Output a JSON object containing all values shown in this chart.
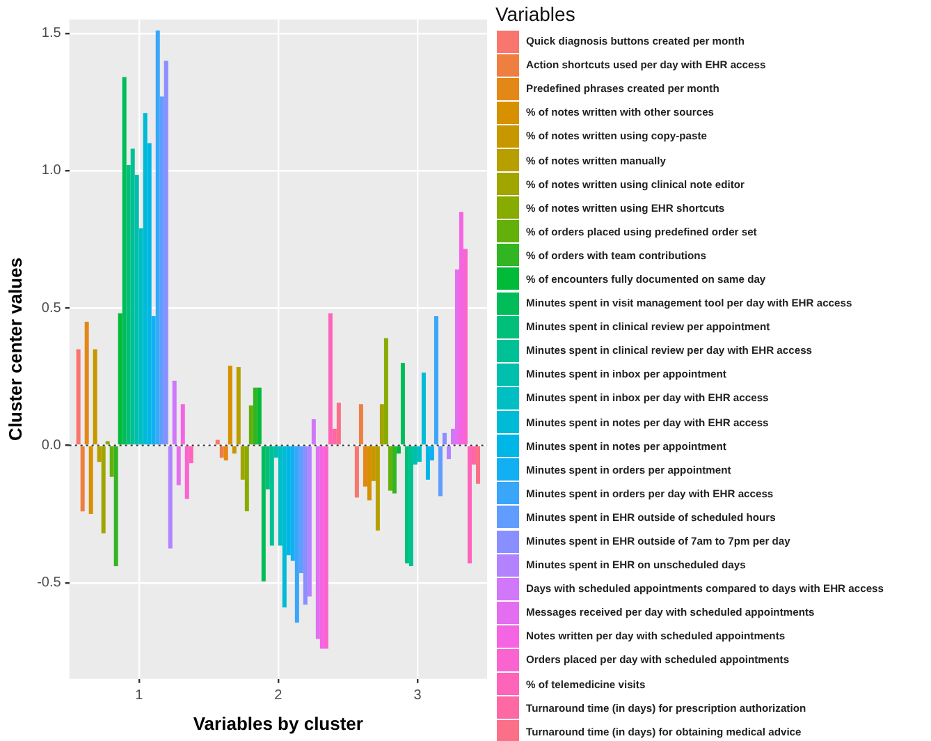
{
  "chart_data": {
    "type": "bar",
    "xlabel": "Variables by cluster",
    "ylabel": "Cluster center values",
    "legend_title": "Variables",
    "legend": "right",
    "grid": true,
    "categories": [
      "1",
      "2",
      "3"
    ],
    "ylim": [
      -0.85,
      1.55
    ],
    "yticks": [
      {
        "value": -0.5,
        "label": "-0.5"
      },
      {
        "value": 0,
        "label": "0.0"
      },
      {
        "value": 0.5,
        "label": "0.5"
      },
      {
        "value": 1,
        "label": "1.0"
      },
      {
        "value": 1.5,
        "label": "1.5"
      }
    ],
    "ref_lines": [
      {
        "axis": "y",
        "value": 0,
        "line_style": "dotted",
        "color": "#333333"
      }
    ],
    "series": [
      {
        "name": "Quick diagnosis buttons created per month",
        "color": "#F8766D",
        "values": [
          0.35,
          0.02,
          -0.19
        ]
      },
      {
        "name": "Action shortcuts used per day with EHR access",
        "color": "#EE7F41",
        "values": [
          -0.24,
          -0.045,
          0.15
        ]
      },
      {
        "name": "Predefined phrases created per month",
        "color": "#E38816",
        "values": [
          0.45,
          -0.055,
          -0.15
        ]
      },
      {
        "name": "% of notes written with other sources",
        "color": "#D69000",
        "values": [
          -0.25,
          0.29,
          -0.2
        ]
      },
      {
        "name": "% of notes written using copy-paste",
        "color": "#C79700",
        "values": [
          0.35,
          -0.03,
          -0.13
        ]
      },
      {
        "name": "% of notes written manually",
        "color": "#B79F00",
        "values": [
          -0.06,
          0.285,
          -0.31
        ]
      },
      {
        "name": "% of notes written using clinical note editor",
        "color": "#A0A500",
        "values": [
          -0.32,
          -0.125,
          0.15
        ]
      },
      {
        "name": "% of notes written using EHR shortcuts",
        "color": "#88AB00",
        "values": [
          0.015,
          -0.24,
          0.39
        ]
      },
      {
        "name": "% of orders placed using predefined order set",
        "color": "#63B00B",
        "values": [
          -0.115,
          0.145,
          -0.165
        ]
      },
      {
        "name": "% of orders with team contributions",
        "color": "#32B522",
        "values": [
          -0.44,
          0.21,
          -0.175
        ]
      },
      {
        "name": "% of encounters fully documented on same day",
        "color": "#00BA38",
        "values": [
          0.48,
          0.21,
          -0.03
        ]
      },
      {
        "name": "Minutes spent in visit management tool per day with EHR access",
        "color": "#00BC59",
        "values": [
          1.34,
          -0.495,
          0.3
        ]
      },
      {
        "name": "Minutes spent in clinical review per appointment",
        "color": "#00BF7A",
        "values": [
          1.02,
          -0.16,
          -0.43
        ]
      },
      {
        "name": "Minutes spent in clinical review per day with EHR access",
        "color": "#00C096",
        "values": [
          1.08,
          -0.365,
          -0.44
        ]
      },
      {
        "name": "Minutes spent in inbox per appointment",
        "color": "#00BFAD",
        "values": [
          0.985,
          -0.045,
          -0.07
        ]
      },
      {
        "name": "Minutes spent in inbox per day with EHR access",
        "color": "#00BFC4",
        "values": [
          0.79,
          -0.365,
          -0.06
        ]
      },
      {
        "name": "Minutes spent in notes per day with EHR access",
        "color": "#00BBD6",
        "values": [
          1.21,
          -0.59,
          0.265
        ]
      },
      {
        "name": "Minutes spent in notes per appointment",
        "color": "#00B6E7",
        "values": [
          1.1,
          -0.4,
          -0.125
        ]
      },
      {
        "name": "Minutes spent in orders per appointment",
        "color": "#13AFF3",
        "values": [
          0.47,
          -0.42,
          -0.055
        ]
      },
      {
        "name": "Minutes spent in orders per day with EHR access",
        "color": "#3AA6F9",
        "values": [
          1.51,
          -0.645,
          0.47
        ]
      },
      {
        "name": "Minutes spent in EHR outside of scheduled hours",
        "color": "#619CFF",
        "values": [
          1.27,
          -0.465,
          -0.185
        ]
      },
      {
        "name": "Minutes spent in EHR outside of 7am to 7pm per day",
        "color": "#8A8FFF",
        "values": [
          1.4,
          -0.58,
          0.045
        ]
      },
      {
        "name": "Minutes spent in EHR on unscheduled days",
        "color": "#B383FF",
        "values": [
          -0.375,
          -0.55,
          -0.05
        ]
      },
      {
        "name": "Days with scheduled appointments compared to days with EHR access",
        "color": "#D077FA",
        "values": [
          0.235,
          0.095,
          0.06
        ]
      },
      {
        "name": "Messages received per day with scheduled appointments",
        "color": "#E36EEF",
        "values": [
          -0.145,
          -0.705,
          0.64
        ]
      },
      {
        "name": "Notes written per day with scheduled appointments",
        "color": "#F564E3",
        "values": [
          0.15,
          -0.74,
          0.85
        ]
      },
      {
        "name": "Orders placed per day with scheduled appointments",
        "color": "#F964CE",
        "values": [
          -0.195,
          -0.74,
          0.715
        ]
      },
      {
        "name": "% of telemedicine visits",
        "color": "#FD64BA",
        "values": [
          -0.065,
          0.48,
          -0.43
        ]
      },
      {
        "name": "Turnaround time (in days) for prescription authorization",
        "color": "#FE68A3",
        "values": [
          0,
          0.06,
          -0.07
        ]
      },
      {
        "name": "Turnaround time (in days) for obtaining medical advice",
        "color": "#FB6F88",
        "values": [
          0,
          0.155,
          -0.14
        ]
      }
    ]
  }
}
